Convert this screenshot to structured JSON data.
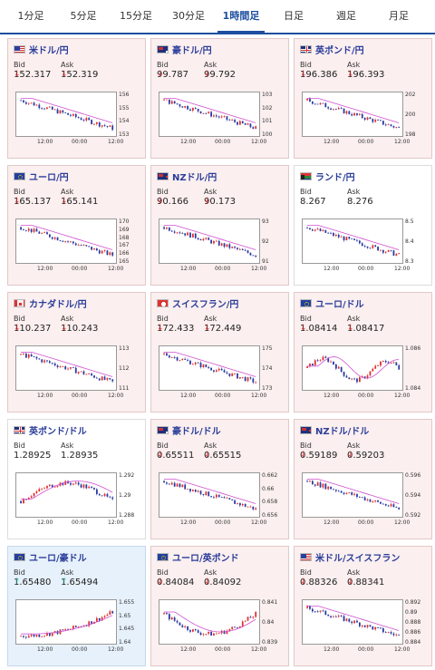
{
  "tabs": [
    "1分足",
    "5分足",
    "15分足",
    "30分足",
    "1時間足",
    "日足",
    "週足",
    "月足"
  ],
  "active_tab": 4,
  "labels": {
    "bid": "Bid",
    "ask": "Ask"
  },
  "colors": {
    "accent": "#1e4fa0",
    "pair_name": "#2b3d9a",
    "down": "#dd3333",
    "up": "#33aa99",
    "bull_candle": "#e03030",
    "bear_candle": "#2a3aa0",
    "ma_line": "#d050d0"
  },
  "cards": [
    {
      "name": "米ドル/円",
      "flag": "us",
      "bid": "152.317",
      "ask": "152.319",
      "dir": "down",
      "bg": "pink",
      "yticks": [
        "156",
        "155",
        "154",
        "153"
      ],
      "xticks": [
        "12:00",
        "00:00",
        "12:00"
      ],
      "trend": "down"
    },
    {
      "name": "豪ドル/円",
      "flag": "au",
      "bid": "99.787",
      "ask": "99.792",
      "dir": "down",
      "bg": "pink",
      "yticks": [
        "103",
        "102",
        "101",
        "100"
      ],
      "xticks": [
        "12:00",
        "00:00",
        "12:00"
      ],
      "trend": "down"
    },
    {
      "name": "英ポンド/円",
      "flag": "gb",
      "bid": "196.386",
      "ask": "196.393",
      "dir": "down",
      "bg": "pink",
      "yticks": [
        "202",
        "200",
        "198"
      ],
      "xticks": [
        "12:00",
        "00:00",
        "12:00"
      ],
      "trend": "down"
    },
    {
      "name": "ユーロ/円",
      "flag": "eu",
      "bid": "165.137",
      "ask": "165.141",
      "dir": "down",
      "bg": "pink",
      "yticks": [
        "170",
        "169",
        "168",
        "167",
        "166",
        "165"
      ],
      "xticks": [
        "12:00",
        "00:00",
        "12:00"
      ],
      "trend": "down"
    },
    {
      "name": "NZドル/円",
      "flag": "nz",
      "bid": "90.166",
      "ask": "90.173",
      "dir": "down",
      "bg": "pink",
      "yticks": [
        "93",
        "92",
        "91"
      ],
      "xticks": [
        "12:00",
        "00:00",
        "12:00"
      ],
      "trend": "down"
    },
    {
      "name": "ランド/円",
      "flag": "za",
      "bid": "8.267",
      "ask": "8.276",
      "dir": "none",
      "bg": "white",
      "yticks": [
        "8.5",
        "8.4",
        "8.3"
      ],
      "xticks": [
        "12:00",
        "00:00",
        "12:00"
      ],
      "trend": "down"
    },
    {
      "name": "カナダドル/円",
      "flag": "ca",
      "bid": "110.237",
      "ask": "110.243",
      "dir": "down",
      "bg": "pink",
      "yticks": [
        "113",
        "112",
        "111"
      ],
      "xticks": [
        "12:00",
        "00:00",
        "12:00"
      ],
      "trend": "down"
    },
    {
      "name": "スイスフラン/円",
      "flag": "ch",
      "bid": "172.433",
      "ask": "172.449",
      "dir": "down",
      "bg": "pink",
      "yticks": [
        "175",
        "174",
        "173"
      ],
      "xticks": [
        "12:00",
        "00:00",
        "12:00"
      ],
      "trend": "down"
    },
    {
      "name": "ユーロ/ドル",
      "flag": "eu",
      "bid": "1.08414",
      "ask": "1.08417",
      "dir": "down",
      "bg": "pink",
      "yticks": [
        "1.086",
        "1.084"
      ],
      "xticks": [
        "12:00",
        "00:00",
        "12:00"
      ],
      "trend": "flat"
    },
    {
      "name": "英ポンド/ドル",
      "flag": "gb",
      "bid": "1.28925",
      "ask": "1.28935",
      "dir": "none",
      "bg": "white",
      "yticks": [
        "1.292",
        "1.29",
        "1.288"
      ],
      "xticks": [
        "12:00",
        "00:00",
        "12:00"
      ],
      "trend": "hump"
    },
    {
      "name": "豪ドル/ドル",
      "flag": "au",
      "bid": "0.65511",
      "ask": "0.65515",
      "dir": "down",
      "bg": "pink",
      "yticks": [
        "0.662",
        "0.66",
        "0.658",
        "0.656"
      ],
      "xticks": [
        "12:00",
        "00:00",
        "12:00"
      ],
      "trend": "down"
    },
    {
      "name": "NZドル/ドル",
      "flag": "nz",
      "bid": "0.59189",
      "ask": "0.59203",
      "dir": "down",
      "bg": "pink",
      "yticks": [
        "0.596",
        "0.594",
        "0.592"
      ],
      "xticks": [
        "12:00",
        "00:00",
        "12:00"
      ],
      "trend": "down"
    },
    {
      "name": "ユーロ/豪ドル",
      "flag": "eu",
      "bid": "1.65480",
      "ask": "1.65494",
      "dir": "up",
      "bg": "blue",
      "yticks": [
        "1.655",
        "1.65",
        "1.645",
        "1.64"
      ],
      "xticks": [
        "12:00",
        "00:00",
        "12:00"
      ],
      "trend": "up"
    },
    {
      "name": "ユーロ/英ポンド",
      "flag": "eu",
      "bid": "0.84084",
      "ask": "0.84092",
      "dir": "down",
      "bg": "pink",
      "yticks": [
        "0.841",
        "0.84",
        "0.839"
      ],
      "xticks": [
        "12:00",
        "00:00",
        "12:00"
      ],
      "trend": "valley"
    },
    {
      "name": "米ドル/スイスフラン",
      "flag": "us",
      "bid": "0.88326",
      "ask": "0.88341",
      "dir": "down",
      "bg": "pink",
      "yticks": [
        "0.892",
        "0.89",
        "0.888",
        "0.886",
        "0.884"
      ],
      "xticks": [
        "12:00",
        "00:00",
        "12:00"
      ],
      "trend": "down"
    }
  ]
}
